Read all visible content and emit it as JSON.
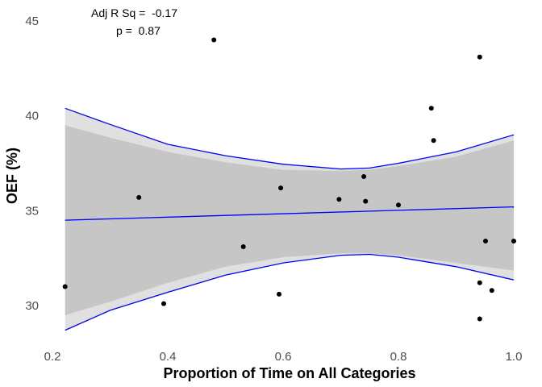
{
  "chart_data": {
    "type": "scatter",
    "title": "",
    "xlabel": "Proportion of Time on All Categories",
    "ylabel": "OEF (%)",
    "xlim": [
      0.2,
      1.0
    ],
    "ylim": [
      28,
      45.5
    ],
    "xticks": [
      0.2,
      0.4,
      0.6,
      0.8,
      1.0
    ],
    "xtick_labels": [
      "0.2",
      "0.4",
      "0.6",
      "0.8",
      "1.0"
    ],
    "yticks": [
      30,
      35,
      40,
      45
    ],
    "ytick_labels": [
      "30",
      "35",
      "40",
      "45"
    ],
    "grid": false,
    "annotations": {
      "adj_r_sq": "Adj R Sq =  -0.17",
      "p_value": "p =  0.87"
    },
    "points": [
      {
        "x": 0.222,
        "y": 31.0
      },
      {
        "x": 0.35,
        "y": 35.7
      },
      {
        "x": 0.393,
        "y": 30.1
      },
      {
        "x": 0.48,
        "y": 44.0
      },
      {
        "x": 0.531,
        "y": 33.1
      },
      {
        "x": 0.593,
        "y": 30.6
      },
      {
        "x": 0.596,
        "y": 36.2
      },
      {
        "x": 0.697,
        "y": 35.6
      },
      {
        "x": 0.74,
        "y": 36.8
      },
      {
        "x": 0.743,
        "y": 35.5
      },
      {
        "x": 0.8,
        "y": 35.3
      },
      {
        "x": 0.857,
        "y": 40.4
      },
      {
        "x": 0.861,
        "y": 38.7
      },
      {
        "x": 0.941,
        "y": 43.1
      },
      {
        "x": 0.941,
        "y": 31.2
      },
      {
        "x": 0.941,
        "y": 29.3
      },
      {
        "x": 0.951,
        "y": 33.4
      },
      {
        "x": 0.962,
        "y": 30.8
      },
      {
        "x": 1.0,
        "y": 33.4
      }
    ],
    "fit_line": {
      "x": [
        0.222,
        1.0
      ],
      "y": [
        34.5,
        35.2
      ],
      "color": "#0000ff"
    },
    "conf_band_inner": {
      "x": [
        0.222,
        0.3,
        0.4,
        0.5,
        0.6,
        0.7,
        0.75,
        0.8,
        0.9,
        1.0
      ],
      "upper": [
        39.5,
        38.85,
        38.1,
        37.55,
        37.15,
        37.1,
        37.15,
        37.35,
        37.85,
        38.7
      ],
      "lower": [
        29.5,
        30.2,
        31.2,
        32.05,
        32.55,
        32.75,
        32.75,
        32.65,
        32.25,
        31.85
      ],
      "color": "#c6c6c6"
    },
    "conf_band_outer": {
      "x": [
        0.222,
        0.3,
        0.4,
        0.5,
        0.6,
        0.7,
        0.75,
        0.8,
        0.9,
        1.0
      ],
      "upper": [
        40.4,
        39.55,
        38.5,
        37.9,
        37.45,
        37.2,
        37.25,
        37.5,
        38.1,
        39.0
      ],
      "lower": [
        28.7,
        29.75,
        30.7,
        31.6,
        32.25,
        32.65,
        32.7,
        32.55,
        32.05,
        31.35
      ],
      "color": "#e0e0e0",
      "edge_color": "#0000ff"
    },
    "point_color": "#000000"
  }
}
